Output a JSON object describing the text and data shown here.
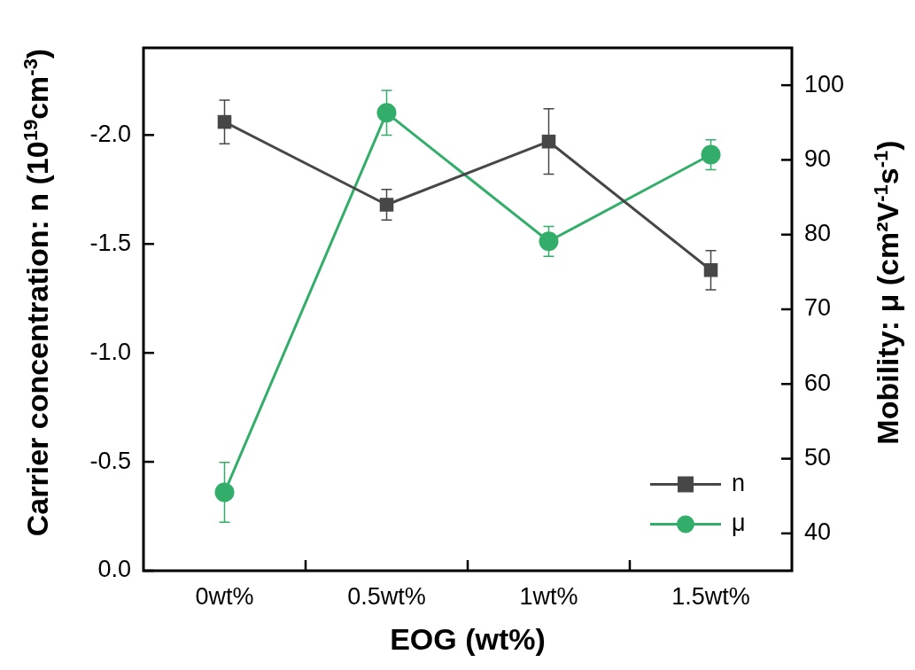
{
  "chart_data": {
    "type": "line",
    "xlabel": "EOG (wt%)",
    "ylabel": "Carrier concentration: n (10$^{19}$cm$^{-3}$)",
    "y2label": "Mobility: μ (cm²V$^{-1}$s$^{-1}$)",
    "categories": [
      "0wt%",
      "0.5wt%",
      "1wt%",
      "1.5wt%"
    ],
    "series": [
      {
        "name": "n",
        "color": "#474747",
        "marker": "square",
        "values": [
          -2.06,
          -1.68,
          -1.97,
          -1.38
        ],
        "errors": [
          0.1,
          0.07,
          0.15,
          0.09
        ]
      },
      {
        "name": "μ",
        "color": "#33ad6a",
        "marker": "circle",
        "axis": "y2",
        "values": [
          45.5,
          96.3,
          79.1,
          90.7
        ],
        "errors": [
          4.0,
          3.0,
          2.0,
          2.0
        ]
      }
    ],
    "ylim": [
      0,
      -2.4
    ],
    "yticks": [
      {
        "value": 0,
        "label": "0.0"
      },
      {
        "value": -0.5,
        "label": "-0.5"
      },
      {
        "value": -1,
        "label": "-1.0"
      },
      {
        "value": -1.5,
        "label": "-1.5"
      },
      {
        "value": -2,
        "label": "-2.0"
      }
    ],
    "y2lim": [
      35,
      105
    ],
    "y2ticks": [
      40,
      50,
      60,
      70,
      80,
      90,
      100
    ],
    "grid": false,
    "legend": "bottom right",
    "line_style": "solid"
  }
}
